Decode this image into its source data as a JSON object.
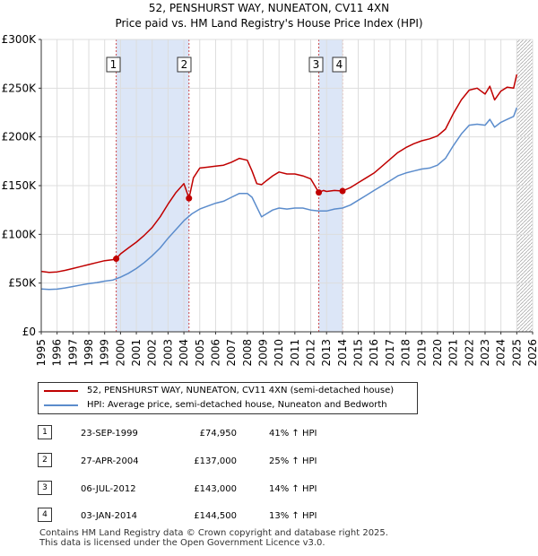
{
  "title_line1": "52, PENSHURST WAY, NUNEATON, CV11 4XN",
  "title_line2": "Price paid vs. HM Land Registry's House Price Index (HPI)",
  "colors": {
    "property": "#c00000",
    "hpi": "#5b8ccc",
    "shade": "#dce6f7",
    "marker": "#c00000",
    "grid": "#dddddd"
  },
  "chart_data": {
    "type": "line",
    "title": "52, PENSHURST WAY, NUNEATON, CV11 4XN — Price paid vs. HM Land Registry's House Price Index (HPI)",
    "xlabel": "",
    "ylabel": "",
    "xlim": [
      1995,
      2026
    ],
    "ylim": [
      0,
      300000
    ],
    "x_ticks": [
      "1995",
      "1996",
      "1997",
      "1998",
      "1999",
      "2000",
      "2001",
      "2002",
      "2003",
      "2004",
      "2005",
      "2006",
      "2007",
      "2008",
      "2009",
      "2010",
      "2011",
      "2012",
      "2013",
      "2014",
      "2015",
      "2016",
      "2017",
      "2018",
      "2019",
      "2020",
      "2021",
      "2022",
      "2023",
      "2024",
      "2025",
      "2026"
    ],
    "y_ticks": [
      {
        "value": 0,
        "label": "£0"
      },
      {
        "value": 50000,
        "label": "£50K"
      },
      {
        "value": 100000,
        "label": "£100K"
      },
      {
        "value": 150000,
        "label": "£150K"
      },
      {
        "value": 200000,
        "label": "£200K"
      },
      {
        "value": 250000,
        "label": "£250K"
      },
      {
        "value": 300000,
        "label": "£300K"
      }
    ],
    "shaded_periods": [
      [
        1999.73,
        2004.32
      ],
      [
        2012.51,
        2014.01
      ]
    ],
    "hatched_region": [
      2025.0,
      2026
    ],
    "series": [
      {
        "name": "52, PENSHURST WAY, NUNEATON, CV11 4XN (semi-detached house)",
        "color": "#c00000",
        "x": [
          1995,
          1995.5,
          1996,
          1996.5,
          1997,
          1997.5,
          1998,
          1998.5,
          1999,
          1999.5,
          1999.73,
          2000,
          2000.5,
          2001,
          2001.5,
          2002,
          2002.5,
          2003,
          2003.5,
          2004,
          2004.32,
          2004.6,
          2005,
          2005.5,
          2006,
          2006.5,
          2007,
          2007.5,
          2008,
          2008.3,
          2008.6,
          2008.9,
          2009.2,
          2009.6,
          2010,
          2010.5,
          2011,
          2011.5,
          2012,
          2012.51,
          2012.8,
          2013,
          2013.5,
          2014.01,
          2014.5,
          2015,
          2015.5,
          2016,
          2016.5,
          2017,
          2017.5,
          2018,
          2018.5,
          2019,
          2019.5,
          2020,
          2020.5,
          2021,
          2021.5,
          2022,
          2022.5,
          2023,
          2023.3,
          2023.6,
          2024,
          2024.4,
          2024.8,
          2025.0
        ],
        "values": [
          62000,
          61000,
          61500,
          63000,
          65000,
          67000,
          69000,
          71000,
          73000,
          74000,
          74950,
          80000,
          86000,
          92000,
          99000,
          107000,
          118000,
          131000,
          143000,
          152000,
          137000,
          158000,
          168000,
          169000,
          170000,
          171000,
          174000,
          178000,
          176000,
          165000,
          152000,
          151000,
          155000,
          160000,
          164000,
          162000,
          162000,
          160000,
          157000,
          143000,
          145000,
          144000,
          145000,
          144500,
          148000,
          153000,
          158000,
          163000,
          170000,
          177000,
          184000,
          189000,
          193000,
          196000,
          198000,
          201000,
          208000,
          224000,
          238000,
          248000,
          250000,
          244000,
          252000,
          238000,
          247000,
          251000,
          250000,
          264000
        ]
      },
      {
        "name": "HPI: Average price, semi-detached house, Nuneaton and Bedworth",
        "color": "#5b8ccc",
        "x": [
          1995,
          1995.5,
          1996,
          1996.5,
          1997,
          1997.5,
          1998,
          1998.5,
          1999,
          1999.5,
          2000,
          2000.5,
          2001,
          2001.5,
          2002,
          2002.5,
          2003,
          2003.5,
          2004,
          2004.5,
          2005,
          2005.5,
          2006,
          2006.5,
          2007,
          2007.5,
          2008,
          2008.3,
          2008.6,
          2008.9,
          2009.2,
          2009.6,
          2010,
          2010.5,
          2011,
          2011.5,
          2012,
          2012.5,
          2013,
          2013.5,
          2014,
          2014.5,
          2015,
          2015.5,
          2016,
          2016.5,
          2017,
          2017.5,
          2018,
          2018.5,
          2019,
          2019.5,
          2020,
          2020.5,
          2021,
          2021.5,
          2022,
          2022.5,
          2023,
          2023.3,
          2023.6,
          2024,
          2024.4,
          2024.8,
          2025.0
        ],
        "values": [
          44000,
          43500,
          43800,
          45000,
          46500,
          48000,
          49500,
          50500,
          52000,
          53000,
          56000,
          60000,
          65000,
          71000,
          78000,
          86000,
          96000,
          105000,
          114000,
          121000,
          126000,
          129000,
          132000,
          134000,
          138000,
          142000,
          142000,
          138000,
          128000,
          118000,
          121000,
          125000,
          127000,
          126000,
          127000,
          127000,
          125000,
          124000,
          124000,
          126000,
          127000,
          130000,
          135000,
          140000,
          145000,
          150000,
          155000,
          160000,
          163000,
          165000,
          167000,
          168000,
          171000,
          178000,
          191000,
          203000,
          212000,
          213000,
          212000,
          218000,
          210000,
          215000,
          218000,
          221000,
          230000
        ]
      }
    ],
    "sale_markers": [
      {
        "num": "1",
        "x": 1999.73,
        "value": 74950
      },
      {
        "num": "2",
        "x": 2004.32,
        "value": 137000
      },
      {
        "num": "3",
        "x": 2012.51,
        "value": 143000
      },
      {
        "num": "4",
        "x": 2014.01,
        "value": 144500
      }
    ]
  },
  "legend": {
    "property_label": "52, PENSHURST WAY, NUNEATON, CV11 4XN (semi-detached house)",
    "hpi_label": "HPI: Average price, semi-detached house, Nuneaton and Bedworth"
  },
  "sales": [
    {
      "num": "1",
      "date": "23-SEP-1999",
      "price": "£74,950",
      "hpi": "41% ↑ HPI"
    },
    {
      "num": "2",
      "date": "27-APR-2004",
      "price": "£137,000",
      "hpi": "25% ↑ HPI"
    },
    {
      "num": "3",
      "date": "06-JUL-2012",
      "price": "£143,000",
      "hpi": "14% ↑ HPI"
    },
    {
      "num": "4",
      "date": "03-JAN-2014",
      "price": "£144,500",
      "hpi": "13% ↑ HPI"
    }
  ],
  "footer_line1": "Contains HM Land Registry data © Crown copyright and database right 2025.",
  "footer_line2": "This data is licensed under the Open Government Licence v3.0."
}
